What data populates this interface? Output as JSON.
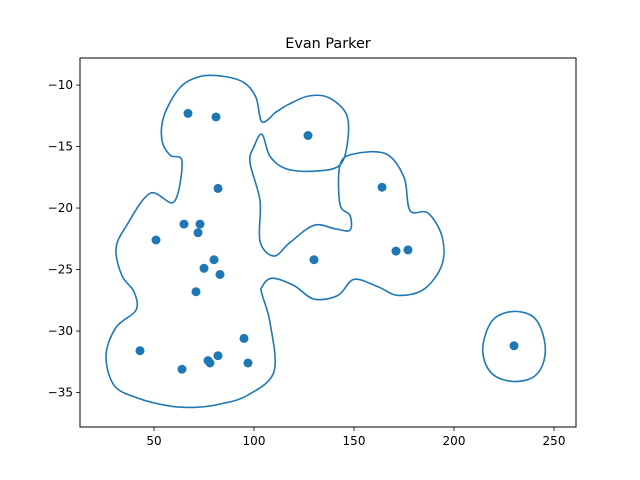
{
  "chart_data": {
    "type": "scatter",
    "title": "Evan Parker",
    "xlabel": "",
    "ylabel": "",
    "xlim": [
      13,
      261
    ],
    "ylim": [
      -37.8,
      -7.8
    ],
    "xticks": [
      50,
      100,
      150,
      200,
      250
    ],
    "yticks": [
      -35,
      -30,
      -25,
      -20,
      -15,
      -10
    ],
    "xtick_labels": [
      "50",
      "100",
      "150",
      "200",
      "250"
    ],
    "ytick_labels": [
      "−35",
      "−30",
      "−25",
      "−20",
      "−15",
      "−10"
    ],
    "grid": false,
    "colors": {
      "series": "#1f77b4"
    },
    "points": [
      {
        "x": 67,
        "y": -12.3
      },
      {
        "x": 81,
        "y": -12.6
      },
      {
        "x": 127,
        "y": -14.1
      },
      {
        "x": 82,
        "y": -18.4
      },
      {
        "x": 164,
        "y": -18.3
      },
      {
        "x": 65,
        "y": -21.3
      },
      {
        "x": 73,
        "y": -21.3
      },
      {
        "x": 72,
        "y": -22.0
      },
      {
        "x": 51,
        "y": -22.6
      },
      {
        "x": 130,
        "y": -24.2
      },
      {
        "x": 171,
        "y": -23.5
      },
      {
        "x": 177,
        "y": -23.4
      },
      {
        "x": 80,
        "y": -24.2
      },
      {
        "x": 75,
        "y": -24.9
      },
      {
        "x": 83,
        "y": -25.4
      },
      {
        "x": 71,
        "y": -26.8
      },
      {
        "x": 95,
        "y": -30.6
      },
      {
        "x": 43,
        "y": -31.6
      },
      {
        "x": 82,
        "y": -32.0
      },
      {
        "x": 77,
        "y": -32.4
      },
      {
        "x": 78,
        "y": -32.6
      },
      {
        "x": 97,
        "y": -32.6
      },
      {
        "x": 64,
        "y": -33.1
      },
      {
        "x": 230,
        "y": -31.2
      }
    ],
    "contours": [
      [
        [
          104,
          -13
        ],
        [
          101,
          -11
        ],
        [
          95,
          -9.8
        ],
        [
          85,
          -9.3
        ],
        [
          73,
          -9.3
        ],
        [
          63,
          -10.2
        ],
        [
          55,
          -12.5
        ],
        [
          54,
          -14.5
        ],
        [
          58,
          -15.7
        ],
        [
          64,
          -16.2
        ],
        [
          60,
          -19.5
        ],
        [
          48,
          -18.8
        ],
        [
          36,
          -21.5
        ],
        [
          31,
          -23.3
        ],
        [
          34,
          -25.5
        ],
        [
          40,
          -26.8
        ],
        [
          41,
          -28.3
        ],
        [
          31,
          -29.7
        ],
        [
          26,
          -32.0
        ],
        [
          30,
          -34.4
        ],
        [
          41,
          -35.4
        ],
        [
          58,
          -36.1
        ],
        [
          71,
          -36.2
        ],
        [
          84,
          -35.9
        ],
        [
          97,
          -35.2
        ],
        [
          110,
          -33.3
        ],
        [
          108,
          -29.3
        ],
        [
          104,
          -27.0
        ],
        [
          104,
          -26.4
        ],
        [
          109,
          -25.7
        ],
        [
          120,
          -26.3
        ],
        [
          130,
          -27.4
        ],
        [
          142,
          -27.1
        ],
        [
          150,
          -25.8
        ],
        [
          162,
          -26.4
        ],
        [
          172,
          -27.1
        ],
        [
          185,
          -26.6
        ],
        [
          194,
          -24.6
        ],
        [
          194,
          -22.3
        ],
        [
          187,
          -20.4
        ],
        [
          178,
          -20.2
        ],
        [
          175,
          -17.5
        ],
        [
          166,
          -15.6
        ],
        [
          150,
          -15.6
        ],
        [
          143,
          -16.5
        ],
        [
          143,
          -19.7
        ],
        [
          148,
          -20.6
        ],
        [
          148,
          -21.8
        ],
        [
          141,
          -21.7
        ],
        [
          130,
          -21.4
        ],
        [
          118,
          -22.8
        ],
        [
          110,
          -23.9
        ],
        [
          103,
          -22.7
        ],
        [
          103,
          -19.4
        ],
        [
          98,
          -16.3
        ],
        [
          100,
          -15.0
        ],
        [
          104,
          -14.0
        ],
        [
          108,
          -15.8
        ],
        [
          116,
          -16.8
        ],
        [
          130,
          -17.0
        ],
        [
          143,
          -16.5
        ],
        [
          147,
          -14.3
        ],
        [
          146,
          -12.3
        ],
        [
          137,
          -11.0
        ],
        [
          127,
          -10.9
        ],
        [
          117,
          -11.6
        ],
        [
          111,
          -12.2
        ],
        [
          104,
          -13
        ]
      ],
      [
        [
          230,
          -28.4
        ],
        [
          240,
          -28.9
        ],
        [
          245,
          -30.6
        ],
        [
          245,
          -32.4
        ],
        [
          240,
          -33.7
        ],
        [
          230,
          -34.1
        ],
        [
          220,
          -33.6
        ],
        [
          215,
          -32.3
        ],
        [
          215,
          -30.7
        ],
        [
          220,
          -29.0
        ],
        [
          230,
          -28.4
        ]
      ]
    ]
  }
}
